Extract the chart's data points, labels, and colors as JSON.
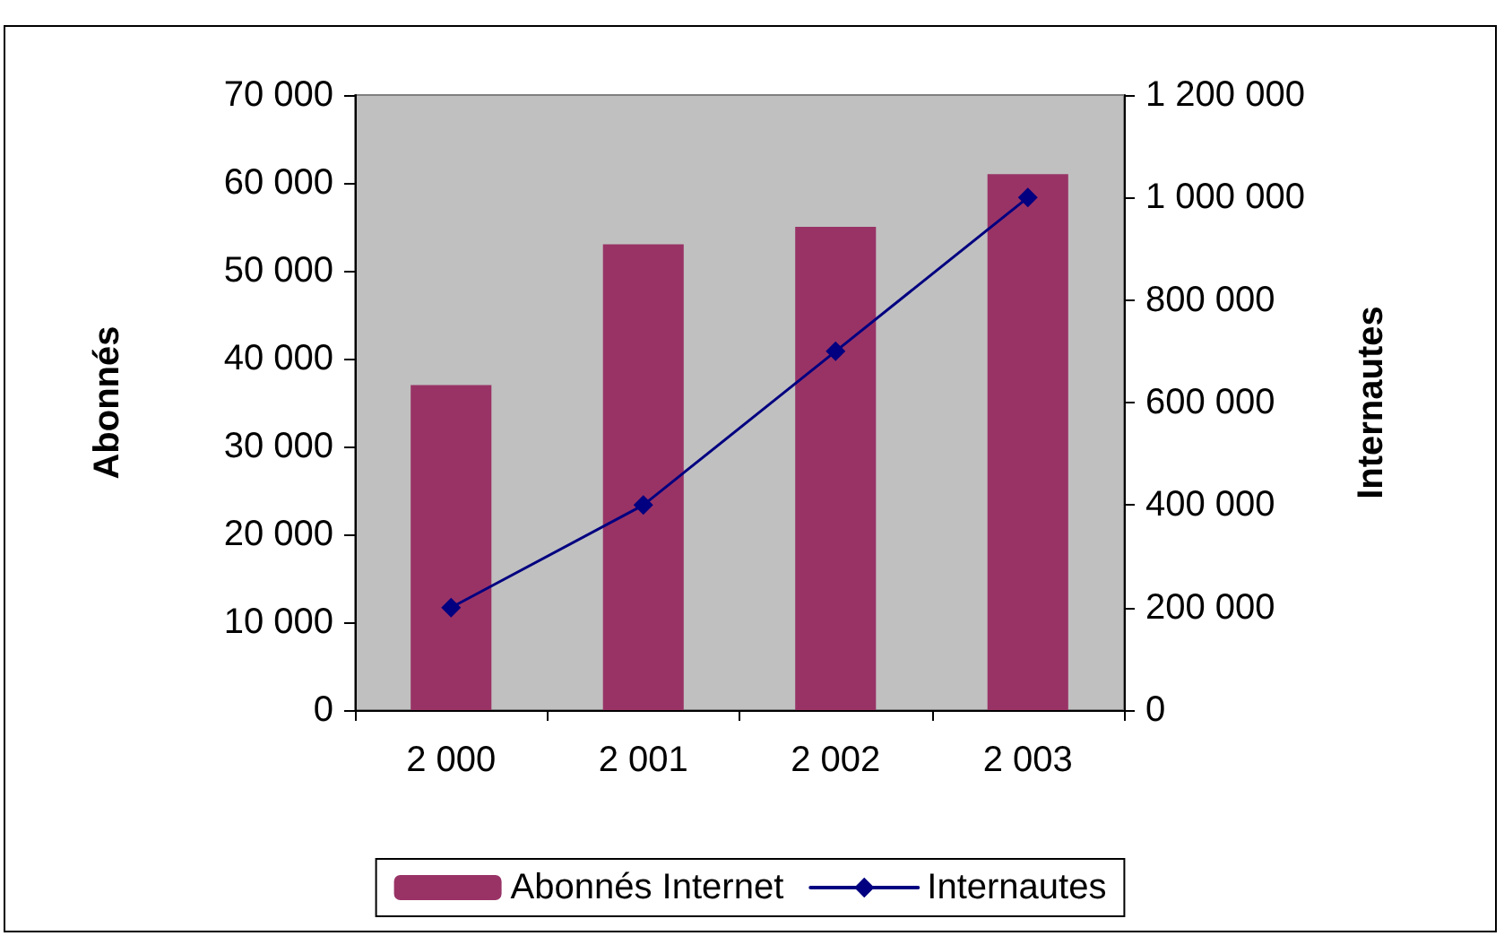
{
  "chart_data": {
    "type": "bar",
    "categories": [
      "2 000",
      "2 001",
      "2 002",
      "2 003"
    ],
    "ylabel": "Abonnés",
    "y2label": "Internautes",
    "series": [
      {
        "name": "Abonnés Internet",
        "color": "#993366",
        "values": [
          37000,
          53000,
          55000,
          61000
        ]
      },
      {
        "name": "Internautes",
        "type": "line",
        "axis": "y2",
        "color": "#000080",
        "marker": "diamond",
        "values": [
          200000,
          400000,
          700000,
          1000000
        ]
      }
    ],
    "ylim": [
      0,
      70000
    ],
    "yticks": [
      {
        "value": 0,
        "label": "0"
      },
      {
        "value": 10000,
        "label": "10 000"
      },
      {
        "value": 20000,
        "label": "20 000"
      },
      {
        "value": 30000,
        "label": "30 000"
      },
      {
        "value": 40000,
        "label": "40 000"
      },
      {
        "value": 50000,
        "label": "50 000"
      },
      {
        "value": 60000,
        "label": "60 000"
      },
      {
        "value": 70000,
        "label": "70 000"
      }
    ],
    "y2lim": [
      0,
      1200000
    ],
    "y2ticks": [
      {
        "value": 0,
        "label": "0"
      },
      {
        "value": 200000,
        "label": "200 000"
      },
      {
        "value": 400000,
        "label": "400 000"
      },
      {
        "value": 600000,
        "label": "600 000"
      },
      {
        "value": 800000,
        "label": "800 000"
      },
      {
        "value": 1000000,
        "label": "1 000 000"
      },
      {
        "value": 1200000,
        "label": "1 200 000"
      }
    ],
    "grid": false,
    "legend": "bottom"
  }
}
